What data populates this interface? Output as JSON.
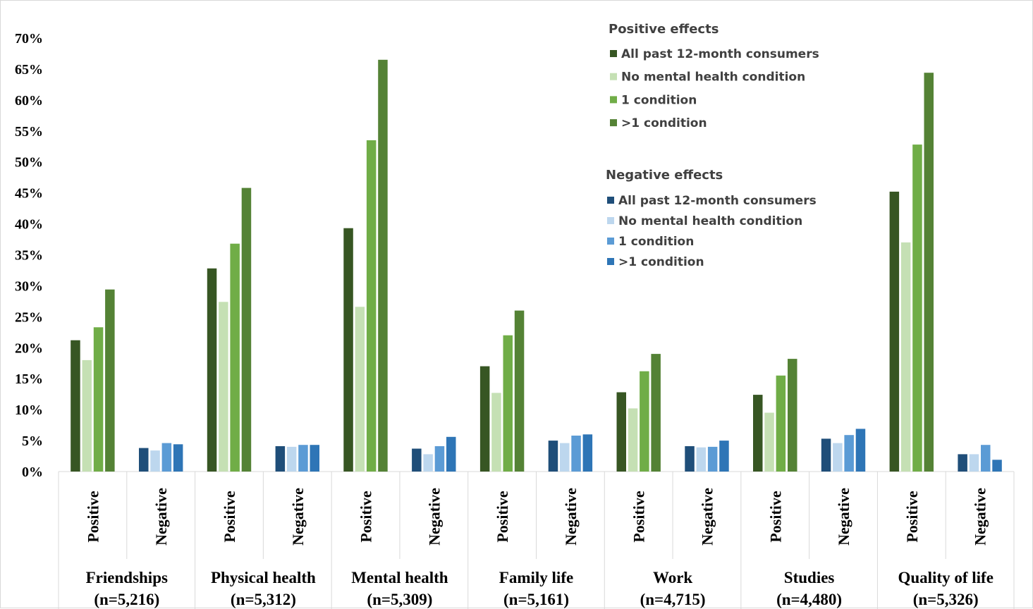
{
  "chart_data": {
    "type": "bar",
    "title": "",
    "ylabel": "",
    "ylim": [
      0,
      70
    ],
    "yticks": [
      "0%",
      "5%",
      "10%",
      "15%",
      "20%",
      "25%",
      "30%",
      "35%",
      "40%",
      "45%",
      "50%",
      "55%",
      "60%",
      "65%",
      "70%"
    ],
    "groups": [
      {
        "name": "Friendships",
        "n": "(n=5,216)",
        "positive": [
          21.2,
          18.0,
          23.3,
          29.4
        ],
        "negative": [
          3.8,
          3.4,
          4.6,
          4.4
        ]
      },
      {
        "name": "Physical health",
        "n": "(n=5,312)",
        "positive": [
          32.8,
          27.4,
          36.8,
          45.8
        ],
        "negative": [
          4.1,
          4.0,
          4.3,
          4.3
        ]
      },
      {
        "name": "Mental health",
        "n": "(n=5,309)",
        "positive": [
          39.3,
          26.6,
          53.5,
          66.5
        ],
        "negative": [
          3.7,
          2.8,
          4.1,
          5.6
        ]
      },
      {
        "name": "Family life",
        "n": "(n=5,161)",
        "positive": [
          17.0,
          12.7,
          22.0,
          26.0
        ],
        "negative": [
          5.0,
          4.6,
          5.8,
          6.0
        ]
      },
      {
        "name": "Work",
        "n": "(n=4,715)",
        "positive": [
          12.8,
          10.2,
          16.2,
          19.0
        ],
        "negative": [
          4.1,
          3.9,
          4.0,
          5.0
        ]
      },
      {
        "name": "Studies",
        "n": "(n=4,480)",
        "positive": [
          12.4,
          9.5,
          15.5,
          18.2
        ],
        "negative": [
          5.3,
          4.6,
          5.9,
          6.9
        ]
      },
      {
        "name": "Quality of life",
        "n": "(n=5,326)",
        "positive": [
          45.2,
          37.0,
          52.8,
          64.4
        ],
        "negative": [
          2.8,
          2.8,
          4.3,
          1.9
        ]
      }
    ],
    "subcategory_labels": {
      "positive": "Positive",
      "negative": "Negative"
    },
    "legend": {
      "placement": "top-right",
      "positive": {
        "title": "Positive effects",
        "items": [
          "All past 12-month consumers",
          "No mental health condition",
          "1 condition",
          ">1 condition"
        ]
      },
      "negative": {
        "title": "Negative effects",
        "items": [
          "All past 12-month consumers",
          "No mental health condition",
          "1 condition",
          ">1 condition"
        ]
      }
    },
    "colors": {
      "positive": [
        "#375623",
        "#c5e0b4",
        "#70ad47",
        "#548235"
      ],
      "negative": [
        "#1f4e79",
        "#bdd7ee",
        "#5b9bd5",
        "#2e75b6"
      ]
    },
    "grid": false
  }
}
